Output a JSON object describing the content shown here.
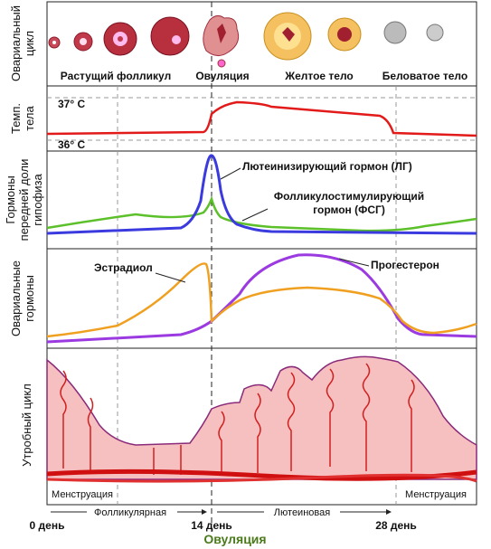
{
  "row_labels": {
    "ovarian_cycle": [
      "Овариальный",
      "цикл"
    ],
    "body_temp": [
      "Темп.",
      "тела"
    ],
    "pituitary": [
      "Гормоны",
      "передней доли",
      "гипофиза"
    ],
    "ovarian_hormones": [
      "Овариальные",
      "гормоны"
    ],
    "uterine_cycle": [
      "Утробный цикл"
    ]
  },
  "ovarian_stages": [
    "Растущий фолликул",
    "Овуляция",
    "Желтое тело",
    "Беловатое тело"
  ],
  "temperature": [
    "37° C",
    "36° C"
  ],
  "pituitary_labels": {
    "lh": [
      "Лютеинизирующий гормон (ЛГ)"
    ],
    "fsh": [
      "Фолликулостимулирующий",
      "гормон (ФСГ)"
    ]
  },
  "ovarian_hormone_labels": [
    "Эстрадиол",
    "Прогестерон"
  ],
  "phases": {
    "menstruation_start": "Менструация",
    "follicular": "Фолликулярная",
    "luteal": "Лютеиновая",
    "menstruation_end": "Менструация"
  },
  "days": [
    "0 день",
    "14 день",
    "28 день"
  ],
  "footer": "Овуляция"
}
